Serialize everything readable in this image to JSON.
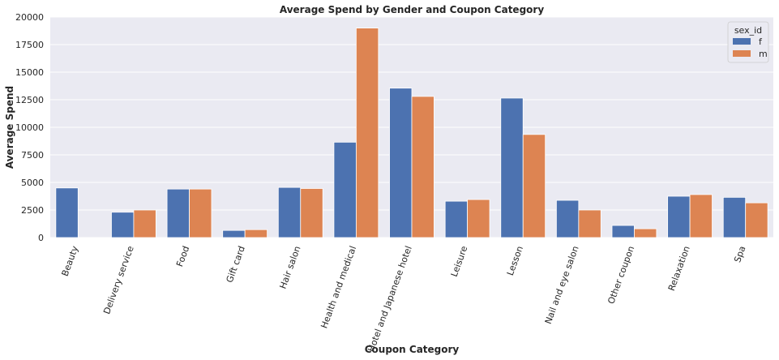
{
  "chart_data": {
    "type": "bar",
    "title": "Average Spend by Gender and Coupon Category",
    "xlabel": "Coupon Category",
    "ylabel": "Average Spend",
    "ylim": [
      0,
      20000
    ],
    "yticks": [
      0,
      2500,
      5000,
      7500,
      10000,
      12500,
      15000,
      17500,
      20000
    ],
    "grid": true,
    "legend_title": "sex_id",
    "legend_position": "top-right",
    "categories": [
      "Beauty",
      "Delivery service",
      "Food",
      "Gift card",
      "Hair salon",
      "Health and medical",
      "Hotel and Japanese hotel",
      "Leisure",
      "Lesson",
      "Nail and eye salon",
      "Other coupon",
      "Relaxation",
      "Spa"
    ],
    "series": [
      {
        "name": "f",
        "color": "#4c72b0",
        "values": [
          4500,
          2300,
          4400,
          650,
          4550,
          8650,
          13550,
          3300,
          12650,
          3380,
          1100,
          3750,
          3650
        ]
      },
      {
        "name": "m",
        "color": "#dd8452",
        "values": [
          0,
          2500,
          4400,
          720,
          4450,
          19000,
          12800,
          3450,
          9350,
          2500,
          800,
          3900,
          3150
        ]
      }
    ]
  }
}
